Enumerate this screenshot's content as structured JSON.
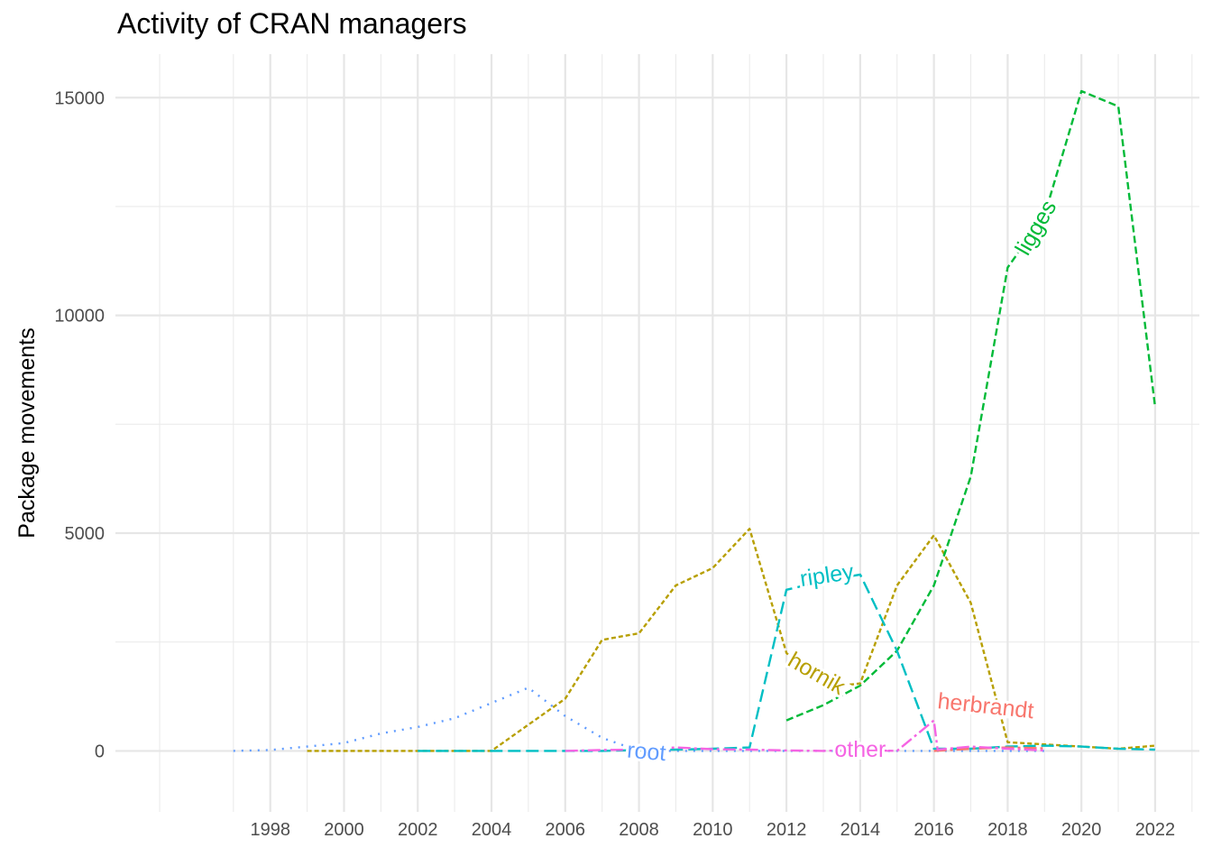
{
  "chart_data": {
    "type": "line",
    "title": "Activity of CRAN managers",
    "xlabel": "",
    "ylabel": "Package movements",
    "xlim": [
      1993.8,
      2023.2
    ],
    "ylim": [
      -1400,
      16000
    ],
    "x_ticks": [
      1998,
      2000,
      2002,
      2004,
      2006,
      2008,
      2010,
      2012,
      2014,
      2016,
      2018,
      2020,
      2022
    ],
    "y_ticks": [
      0,
      5000,
      10000,
      15000
    ],
    "grid": true,
    "legend": "none",
    "series": [
      {
        "name": "root",
        "color": "#619CFF",
        "dash": "2,7",
        "label_pos": [
          2008.2,
          -50
        ],
        "label_angle": 5,
        "points": [
          [
            1997,
            0
          ],
          [
            1998,
            20
          ],
          [
            1999,
            100
          ],
          [
            2000,
            180
          ],
          [
            2001,
            400
          ],
          [
            2002,
            550
          ],
          [
            2003,
            750
          ],
          [
            2004,
            1100
          ],
          [
            2005,
            1450
          ],
          [
            2006,
            800
          ],
          [
            2007,
            300
          ],
          [
            2008,
            0
          ],
          [
            2009,
            0
          ],
          [
            2010,
            0
          ],
          [
            2011,
            0
          ],
          [
            2012,
            0
          ],
          [
            2013,
            0
          ],
          [
            2014,
            0
          ],
          [
            2015,
            0
          ],
          [
            2016,
            0
          ],
          [
            2017,
            0
          ],
          [
            2018,
            0
          ],
          [
            2019,
            0
          ]
        ]
      },
      {
        "name": "hornik",
        "color": "#B79F00",
        "dash": "5,3",
        "label_pos": [
          2012.8,
          1750
        ],
        "label_angle": 30,
        "points": [
          [
            1999,
            0
          ],
          [
            2000,
            0
          ],
          [
            2001,
            0
          ],
          [
            2002,
            0
          ],
          [
            2003,
            0
          ],
          [
            2004,
            0
          ],
          [
            2005,
            600
          ],
          [
            2006,
            1200
          ],
          [
            2007,
            2550
          ],
          [
            2008,
            2700
          ],
          [
            2009,
            3800
          ],
          [
            2010,
            4200
          ],
          [
            2011,
            5100
          ],
          [
            2012,
            2250
          ],
          [
            2013,
            1450
          ],
          [
            2014,
            1550
          ],
          [
            2015,
            3800
          ],
          [
            2016,
            4950
          ],
          [
            2017,
            3400
          ],
          [
            2018,
            200
          ],
          [
            2019,
            150
          ],
          [
            2020,
            100
          ],
          [
            2021,
            50
          ],
          [
            2022,
            120
          ]
        ]
      },
      {
        "name": "ligges",
        "color": "#00BA38",
        "dash": "8,4",
        "label_pos": [
          2018.8,
          12000
        ],
        "label_angle": -60,
        "points": [
          [
            2012,
            700
          ],
          [
            2013,
            1050
          ],
          [
            2014,
            1500
          ],
          [
            2015,
            2300
          ],
          [
            2016,
            3800
          ],
          [
            2017,
            6300
          ],
          [
            2018,
            11100
          ],
          [
            2019,
            12300
          ],
          [
            2020,
            15150
          ],
          [
            2021,
            14800
          ],
          [
            2022,
            7900
          ]
        ]
      },
      {
        "name": "ripley",
        "color": "#00BFC4",
        "dash": "14,6",
        "label_pos": [
          2013.1,
          4000
        ],
        "label_angle": -8,
        "points": [
          [
            2002,
            0
          ],
          [
            2003,
            0
          ],
          [
            2004,
            0
          ],
          [
            2005,
            0
          ],
          [
            2006,
            0
          ],
          [
            2007,
            0
          ],
          [
            2008,
            20
          ],
          [
            2009,
            30
          ],
          [
            2010,
            50
          ],
          [
            2011,
            80
          ],
          [
            2012,
            3700
          ],
          [
            2013,
            3900
          ],
          [
            2014,
            4050
          ],
          [
            2015,
            2300
          ],
          [
            2016,
            50
          ],
          [
            2017,
            50
          ],
          [
            2018,
            100
          ],
          [
            2019,
            120
          ],
          [
            2020,
            100
          ],
          [
            2021,
            50
          ],
          [
            2022,
            30
          ]
        ]
      },
      {
        "name": "herbrandt",
        "color": "#F8766D",
        "dash": "14,4,3,4",
        "label_pos": [
          2017.4,
          1000
        ],
        "label_angle": 6,
        "points": [
          [
            2016,
            0
          ],
          [
            2017,
            50
          ],
          [
            2018,
            80
          ],
          [
            2019,
            60
          ]
        ]
      },
      {
        "name": "other",
        "color": "#F564E3",
        "dash": "14,4,3,4",
        "label_pos": [
          2014.0,
          0
        ],
        "label_angle": 0,
        "points": [
          [
            2006,
            0
          ],
          [
            2007,
            20
          ],
          [
            2008,
            30
          ],
          [
            2009,
            80
          ],
          [
            2010,
            40
          ],
          [
            2011,
            30
          ],
          [
            2012,
            10
          ],
          [
            2013,
            0
          ],
          [
            2014,
            20
          ],
          [
            2015,
            0
          ],
          [
            2016,
            700
          ],
          [
            2016.1,
            30
          ],
          [
            2017,
            100
          ],
          [
            2018,
            50
          ],
          [
            2019,
            10
          ]
        ]
      }
    ]
  }
}
